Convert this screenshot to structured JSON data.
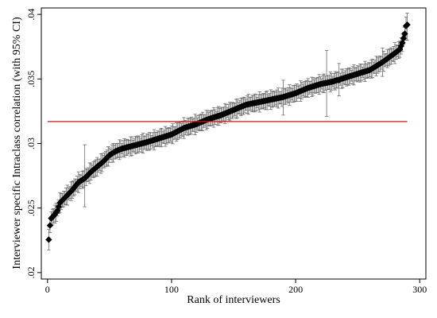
{
  "chart_data": {
    "type": "scatter",
    "xlabel": "Rank of interviewers",
    "ylabel": "Interviewer specific Intraclass correlation (with 95% CI)",
    "xlim": [
      -5,
      305
    ],
    "ylim": [
      0.0195,
      0.0405
    ],
    "x_ticks": [
      0,
      100,
      200,
      300
    ],
    "x_tick_labels": [
      "0",
      "100",
      "200",
      "300"
    ],
    "y_ticks": [
      0.02,
      0.025,
      0.03,
      0.035,
      0.04
    ],
    "y_tick_labels": [
      ".02",
      ".025",
      ".03",
      ".035",
      ".04"
    ],
    "grid": false,
    "legend": "none",
    "reference_line": {
      "y": 0.0317,
      "color": "#b22222"
    },
    "series": {
      "marker": "diamond",
      "color": "#000000",
      "ci_color": "#6e6e6e",
      "n_points": 290,
      "anchors": [
        [
          1,
          0.02255
        ],
        [
          2,
          0.02365
        ],
        [
          3,
          0.0242
        ],
        [
          5,
          0.0244
        ],
        [
          8,
          0.0248
        ],
        [
          10,
          0.0254
        ],
        [
          15,
          0.0259
        ],
        [
          20,
          0.0264
        ],
        [
          25,
          0.027
        ],
        [
          30,
          0.0273
        ],
        [
          35,
          0.0278
        ],
        [
          40,
          0.0282
        ],
        [
          45,
          0.0286
        ],
        [
          50,
          0.0291
        ],
        [
          55,
          0.0294
        ],
        [
          60,
          0.0296
        ],
        [
          70,
          0.02985
        ],
        [
          80,
          0.0301
        ],
        [
          90,
          0.0304
        ],
        [
          100,
          0.0307
        ],
        [
          110,
          0.0312
        ],
        [
          120,
          0.0315
        ],
        [
          130,
          0.0319
        ],
        [
          140,
          0.0322
        ],
        [
          150,
          0.0326
        ],
        [
          160,
          0.033
        ],
        [
          170,
          0.0332
        ],
        [
          180,
          0.0334
        ],
        [
          190,
          0.0336
        ],
        [
          200,
          0.0339
        ],
        [
          210,
          0.0343
        ],
        [
          220,
          0.0346
        ],
        [
          230,
          0.0348
        ],
        [
          240,
          0.0351
        ],
        [
          250,
          0.0354
        ],
        [
          260,
          0.0357
        ],
        [
          270,
          0.0363
        ],
        [
          280,
          0.037
        ],
        [
          284,
          0.0373
        ],
        [
          286,
          0.0378
        ],
        [
          288,
          0.0385
        ],
        [
          289,
          0.0391
        ],
        [
          290,
          0.0392
        ]
      ],
      "ci_halfwidth_base": 0.0006,
      "ci_overrides": [
        [
          30,
          0.0273,
          0.0251,
          0.0299
        ],
        [
          190,
          0.0336,
          0.0322,
          0.0349
        ],
        [
          225,
          0.0347,
          0.0321,
          0.0372
        ],
        [
          235,
          0.0349,
          0.0337,
          0.0362
        ],
        [
          270,
          0.0363,
          0.0352,
          0.0374
        ],
        [
          290,
          0.0392,
          0.038,
          0.0401
        ],
        [
          289,
          0.0391,
          0.038,
          0.0398
        ]
      ]
    }
  }
}
